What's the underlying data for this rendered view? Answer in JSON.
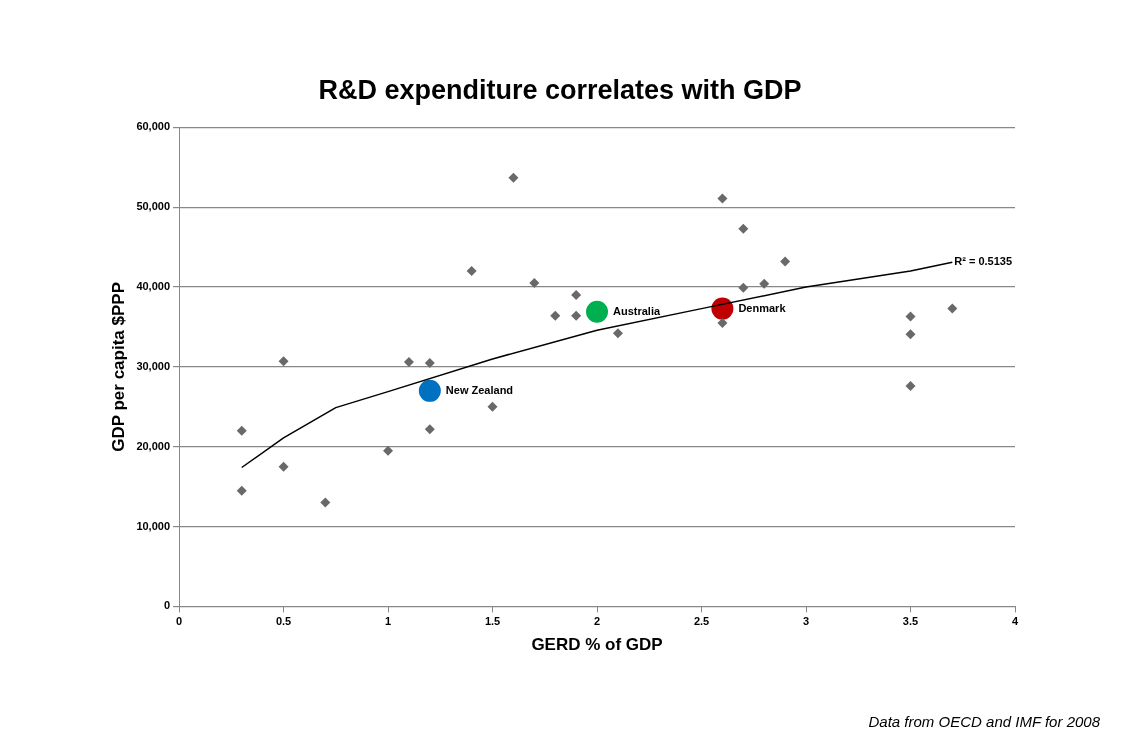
{
  "chart_data": {
    "type": "scatter",
    "title": "R&D expenditure correlates with GDP",
    "xlabel": "GERD % of GDP",
    "ylabel": "GDP per capita $PPP",
    "xlim": [
      0,
      4
    ],
    "xticks": [
      0,
      0.5,
      1,
      1.5,
      2,
      2.5,
      3,
      3.5,
      4
    ],
    "ylim": [
      0,
      60000
    ],
    "yticks": [
      {
        "value": 0,
        "label": "0"
      },
      {
        "value": 10000,
        "label": "10,000"
      },
      {
        "value": 20000,
        "label": "20,000"
      },
      {
        "value": 30000,
        "label": "30,000"
      },
      {
        "value": 40000,
        "label": "40,000"
      },
      {
        "value": 50000,
        "label": "50,000"
      },
      {
        "value": 60000,
        "label": "60,000"
      }
    ],
    "grid": "y",
    "legend": false,
    "series": [
      {
        "color": "#696969",
        "marker": "diamond",
        "x": [
          0.3,
          0.3,
          0.5,
          0.5,
          0.7,
          1.0,
          1.1,
          1.2,
          1.2,
          1.5,
          1.4,
          1.6,
          1.7,
          1.8,
          1.9,
          1.9,
          2.1,
          2.6,
          2.7,
          2.9,
          2.7,
          2.8,
          2.6,
          3.5,
          3.5,
          3.5,
          3.7
        ],
        "values": [
          22000,
          14500,
          30700,
          17500,
          13000,
          19500,
          30600,
          30500,
          22200,
          25000,
          42000,
          53700,
          40500,
          36400,
          39000,
          36400,
          34200,
          51100,
          47300,
          43200,
          39900,
          40400,
          35500,
          36300,
          34100,
          27600,
          37300
        ]
      },
      {
        "type": "line",
        "color": "#000000",
        "marker": "none",
        "x": [
          0.3,
          0.5,
          0.75,
          1,
          1.5,
          2,
          2.5,
          3,
          3.5,
          3.7
        ],
        "values": [
          17400,
          21100,
          24900,
          26900,
          31000,
          34600,
          37300,
          40000,
          42000,
          43100
        ]
      },
      {
        "name": "New Zealand",
        "color": "#0070c0",
        "marker": "circle",
        "x": [
          1.2
        ],
        "values": [
          27000
        ]
      },
      {
        "name": "Australia",
        "color": "#00b050",
        "marker": "circle",
        "x": [
          2.0
        ],
        "values": [
          36900
        ]
      },
      {
        "name": "Denmark",
        "color": "#c00000",
        "marker": "circle",
        "x": [
          2.6
        ],
        "values": [
          37300
        ]
      }
    ],
    "annotations": [
      {
        "text": "R² = 0.5135",
        "x": 3.7,
        "y": 43100
      },
      "Data from OECD and IMF for 2008"
    ]
  }
}
